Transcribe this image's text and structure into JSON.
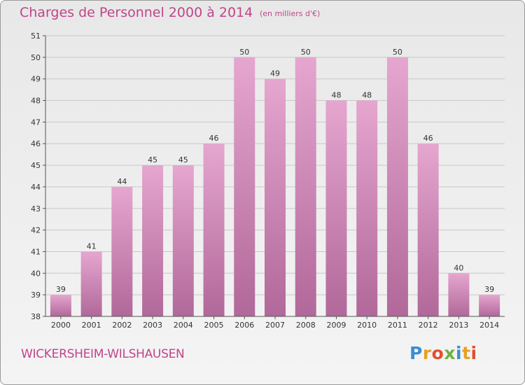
{
  "header": {
    "title": "Charges de Personnel 2000 à 2014",
    "subtitle": "(en milliers d'€)"
  },
  "footer": {
    "commune": "WICKERSHEIM-WILSHAUSEN",
    "logo": "Proxiti",
    "logo_letters": [
      {
        "ch": "P",
        "color": "#3c8fd0"
      },
      {
        "ch": "r",
        "color": "#e8a020"
      },
      {
        "ch": "o",
        "color": "#e05030"
      },
      {
        "ch": "x",
        "color": "#70b040"
      },
      {
        "ch": "i",
        "color": "#3c8fd0"
      },
      {
        "ch": "t",
        "color": "#e8a020"
      },
      {
        "ch": "i",
        "color": "#e05030"
      }
    ]
  },
  "colors": {
    "bar_top": "#e5a6cf",
    "bar_bottom": "#b1689a",
    "grid": "#c8c8c8",
    "title": "#c0448a"
  },
  "chart_data": {
    "type": "bar",
    "title": "Charges de Personnel 2000 à 2014",
    "subtitle": "(en milliers d'€)",
    "categories": [
      "2000",
      "2001",
      "2002",
      "2003",
      "2004",
      "2005",
      "2006",
      "2007",
      "2008",
      "2009",
      "2010",
      "2011",
      "2012",
      "2013",
      "2014"
    ],
    "values": [
      39,
      41,
      44,
      45,
      45,
      46,
      50,
      49,
      50,
      48,
      48,
      50,
      46,
      40,
      39
    ],
    "ylim": [
      38,
      51
    ],
    "yticks": [
      38,
      39,
      40,
      41,
      42,
      43,
      44,
      45,
      46,
      47,
      48,
      49,
      50,
      51
    ],
    "grid": true,
    "xlabel": "",
    "ylabel": ""
  }
}
